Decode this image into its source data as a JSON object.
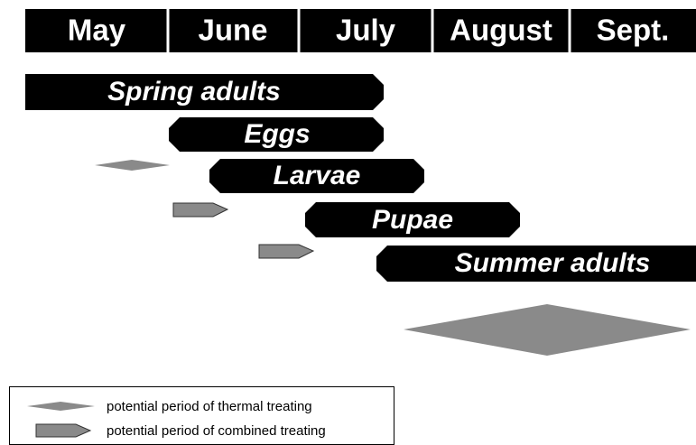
{
  "months": [
    "May",
    "June",
    "July",
    "August",
    "Sept."
  ],
  "stages": [
    "Spring adults",
    "Eggs",
    "Larvae",
    "Pupae",
    "Summer adults"
  ],
  "legend": [
    "potential period of thermal treating",
    "potential period of combined treating"
  ]
}
